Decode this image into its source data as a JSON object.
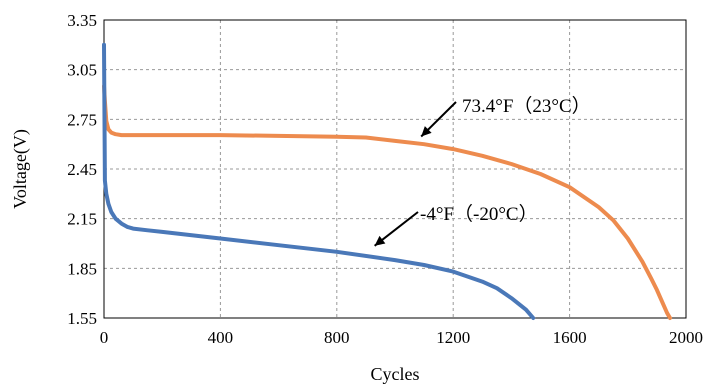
{
  "chart_data": {
    "type": "line",
    "xlabel": "Cycles",
    "ylabel": "Voltage(V)",
    "xlim": [
      0,
      2000
    ],
    "ylim": [
      1.55,
      3.35
    ],
    "xticks": [
      0,
      400,
      800,
      1200,
      1600,
      2000
    ],
    "yticks": [
      1.55,
      1.85,
      2.15,
      2.45,
      2.75,
      3.05,
      3.35
    ],
    "xtick_labels": [
      "0",
      "400",
      "800",
      "1200",
      "1600",
      "2000"
    ],
    "ytick_labels": [
      "1.55",
      "1.85",
      "2.15",
      "2.45",
      "2.75",
      "3.05",
      "3.35"
    ],
    "grid": true,
    "series": [
      {
        "color": "#ED8B4E",
        "x": [
          0,
          3,
          8,
          15,
          25,
          40,
          60,
          100,
          200,
          400,
          600,
          800,
          900,
          1000,
          1100,
          1200,
          1300,
          1400,
          1500,
          1600,
          1700,
          1750,
          1800,
          1850,
          1880,
          1900,
          1920,
          1935,
          1945
        ],
        "y": [
          2.95,
          2.86,
          2.74,
          2.69,
          2.67,
          2.66,
          2.655,
          2.655,
          2.655,
          2.655,
          2.65,
          2.645,
          2.64,
          2.62,
          2.6,
          2.57,
          2.53,
          2.48,
          2.42,
          2.34,
          2.22,
          2.14,
          2.03,
          1.89,
          1.79,
          1.72,
          1.64,
          1.58,
          1.55
        ]
      },
      {
        "color": "#4A78B8",
        "x": [
          0,
          3,
          8,
          15,
          25,
          40,
          60,
          80,
          100,
          150,
          200,
          400,
          600,
          800,
          1000,
          1100,
          1200,
          1300,
          1350,
          1400,
          1450,
          1475
        ],
        "y": [
          3.2,
          2.38,
          2.3,
          2.24,
          2.19,
          2.15,
          2.12,
          2.1,
          2.09,
          2.08,
          2.07,
          2.03,
          1.99,
          1.95,
          1.9,
          1.87,
          1.83,
          1.77,
          1.73,
          1.67,
          1.6,
          1.55
        ]
      }
    ],
    "annotations": [
      {
        "text": "73.4°F（23°C）",
        "arrow_to": [
          1090,
          2.61
        ]
      },
      {
        "text": "-4°F（-20°C）",
        "arrow_to": [
          930,
          1.95
        ]
      }
    ]
  }
}
